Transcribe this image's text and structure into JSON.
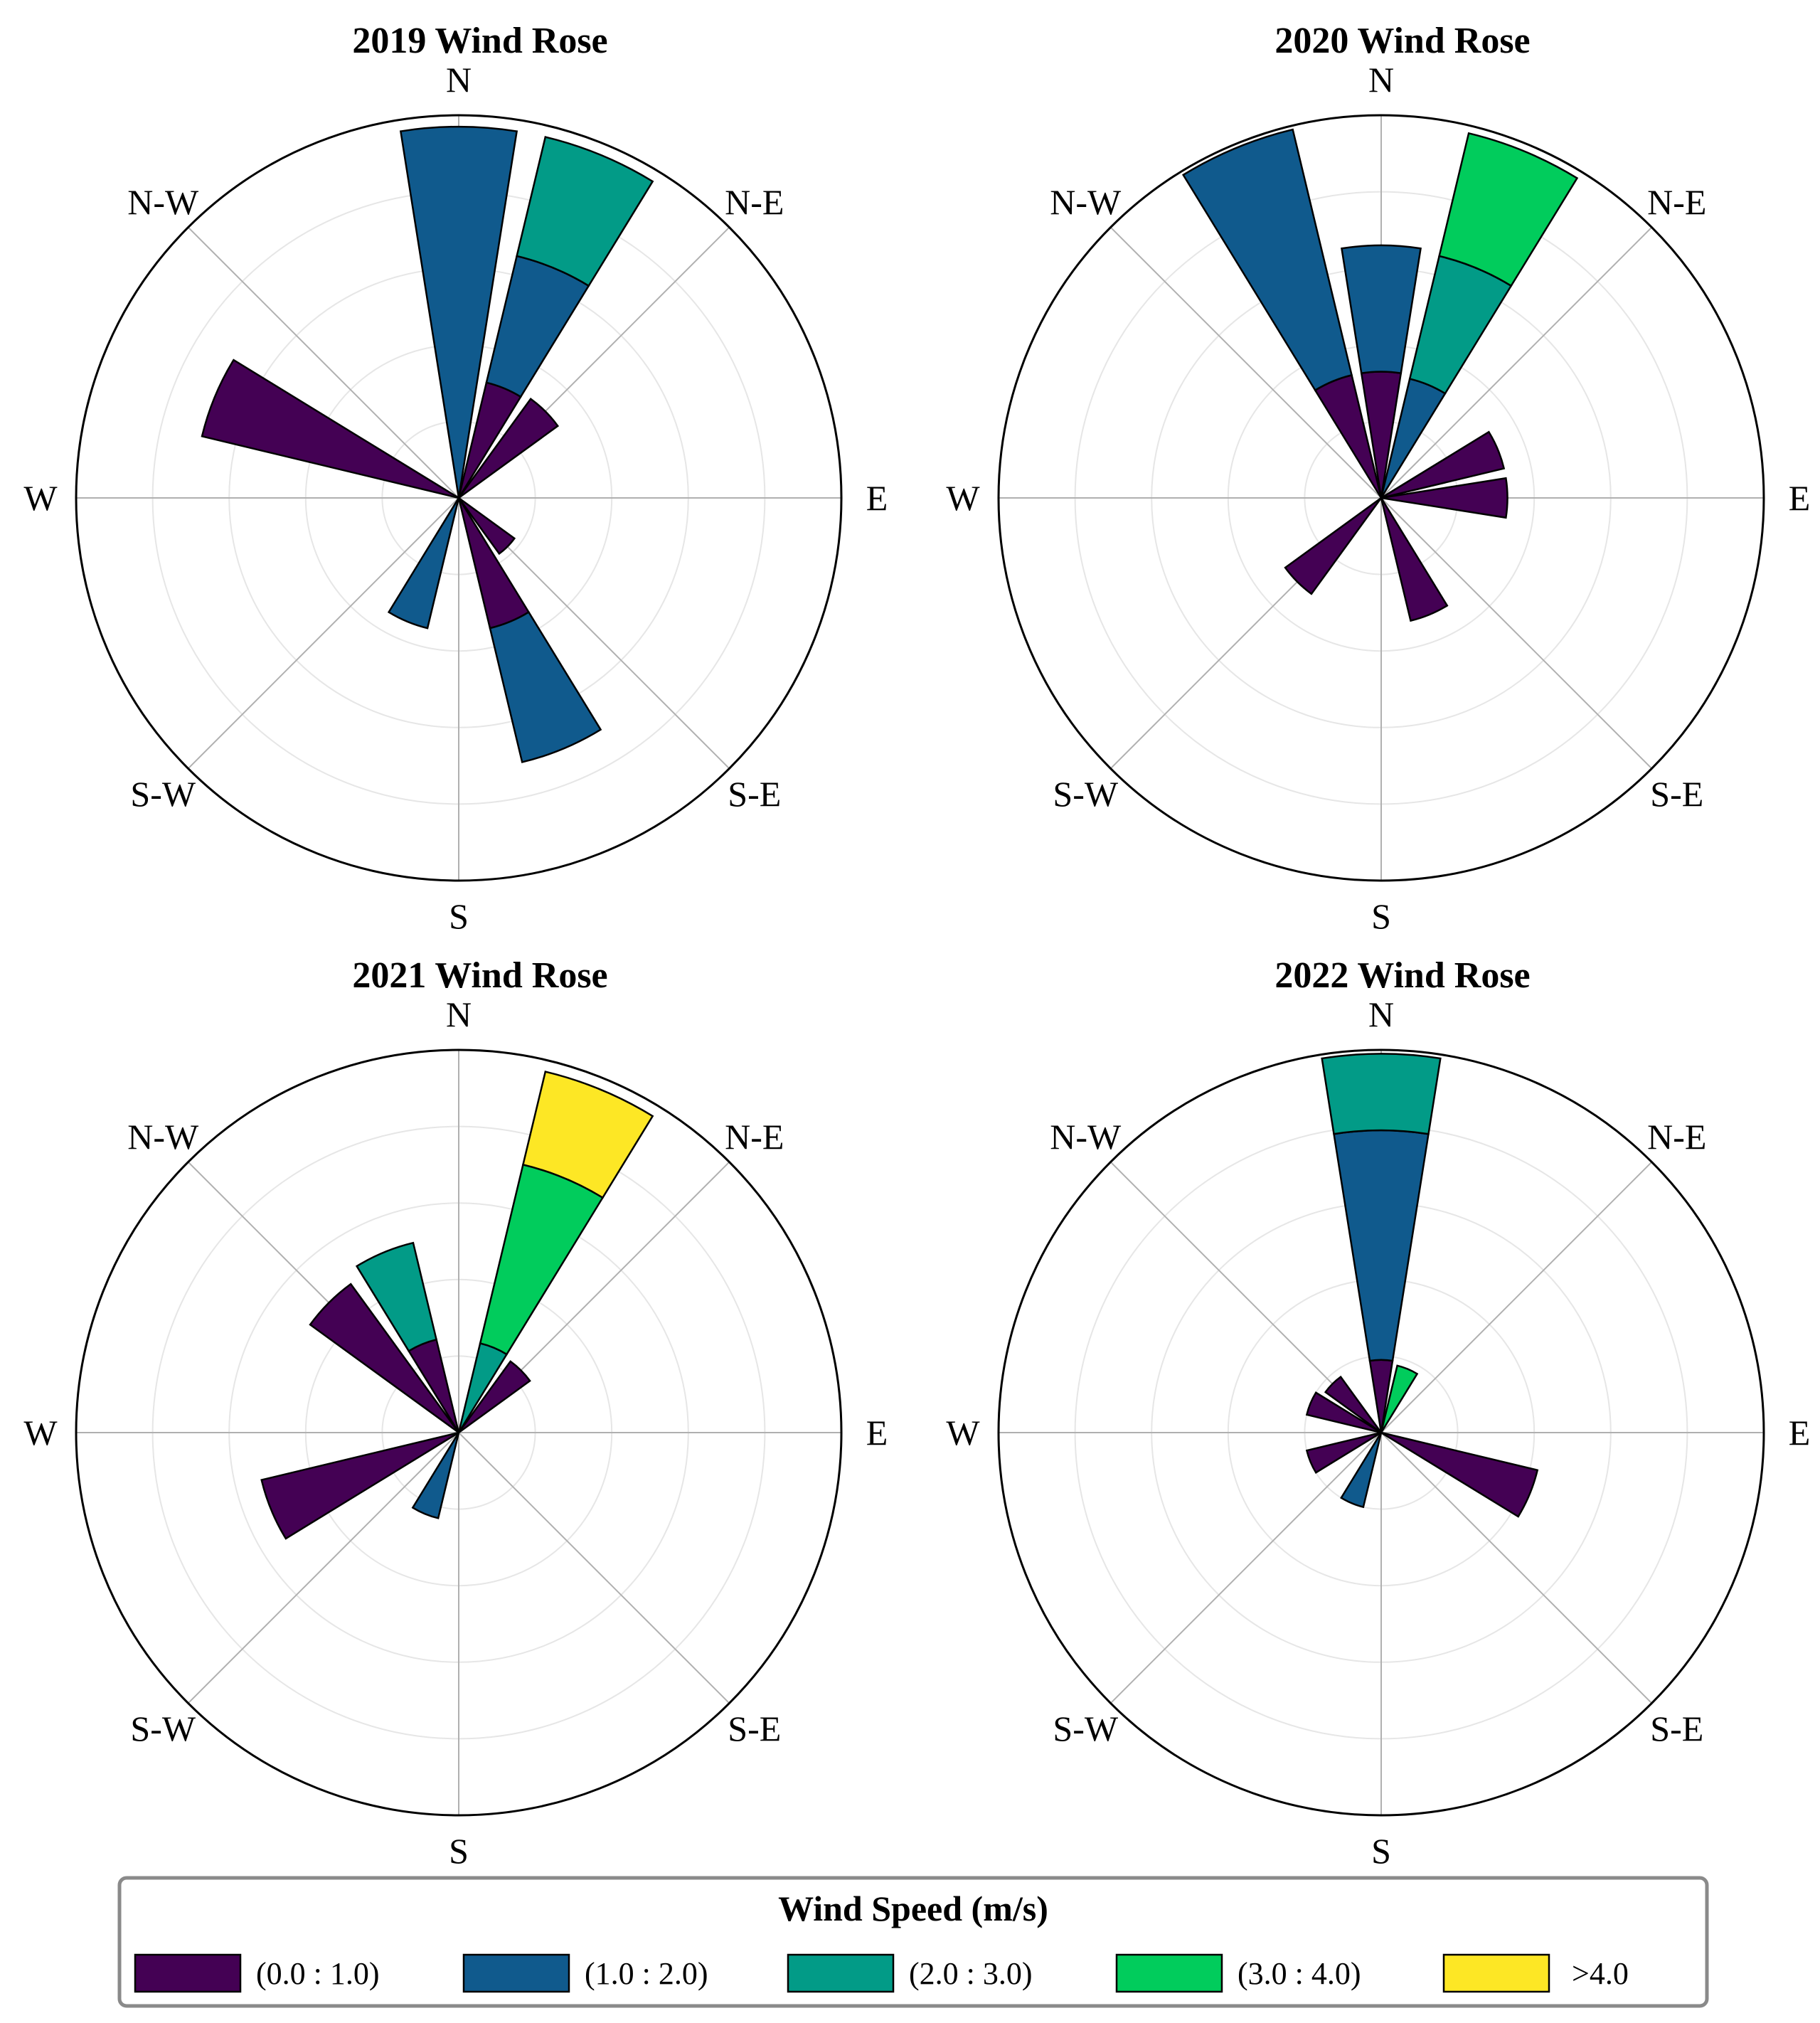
{
  "legend": {
    "title": "Wind Speed (m/s)",
    "bins": [
      {
        "label": "(0.0 : 1.0)",
        "color": "#440154"
      },
      {
        "label": "(1.0 : 2.0)",
        "color": "#105a8d"
      },
      {
        "label": "(2.0 : 3.0)",
        "color": "#029b87"
      },
      {
        "label": "(3.0 : 4.0)",
        "color": "#01cc5c"
      },
      {
        "label": ">4.0",
        "color": "#fde725"
      }
    ]
  },
  "chart_data": [
    {
      "type": "windrose",
      "title": "2019 Wind Rose",
      "direction_labels": [
        "N",
        "N-E",
        "E",
        "S-E",
        "S",
        "S-W",
        "W",
        "N-W"
      ],
      "rmax": 5,
      "rings": [
        1,
        2,
        3,
        4,
        5
      ],
      "sectors": [
        {
          "direction_deg": 0,
          "segments": [
            [
              0,
              4.85,
              1
            ]
          ]
        },
        {
          "direction_deg": 22.5,
          "segments": [
            [
              0,
              1.55,
              0
            ],
            [
              1.55,
              3.25,
              1
            ],
            [
              3.25,
              4.85,
              2
            ]
          ]
        },
        {
          "direction_deg": 45,
          "segments": [
            [
              0,
              1.6,
              0
            ]
          ]
        },
        {
          "direction_deg": 135,
          "segments": [
            [
              0,
              0.9,
              0
            ]
          ]
        },
        {
          "direction_deg": 157.5,
          "segments": [
            [
              0,
              1.75,
              0
            ],
            [
              1.75,
              3.55,
              1
            ]
          ]
        },
        {
          "direction_deg": 202.5,
          "segments": [
            [
              0,
              1.75,
              1
            ]
          ]
        },
        {
          "direction_deg": 292.5,
          "segments": [
            [
              0,
              3.45,
              0
            ]
          ]
        }
      ]
    },
    {
      "type": "windrose",
      "title": "2020 Wind Rose",
      "direction_labels": [
        "N",
        "N-E",
        "E",
        "S-E",
        "S",
        "S-W",
        "W",
        "N-W"
      ],
      "rmax": 5,
      "rings": [
        1,
        2,
        3,
        4,
        5
      ],
      "sectors": [
        {
          "direction_deg": 0,
          "segments": [
            [
              0,
              1.65,
              0
            ],
            [
              1.65,
              3.3,
              1
            ]
          ]
        },
        {
          "direction_deg": 22.5,
          "segments": [
            [
              0,
              1.6,
              1
            ],
            [
              1.6,
              3.25,
              2
            ],
            [
              3.25,
              4.9,
              3
            ]
          ]
        },
        {
          "direction_deg": 67.5,
          "segments": [
            [
              0,
              1.65,
              0
            ]
          ]
        },
        {
          "direction_deg": 90,
          "segments": [
            [
              0,
              1.65,
              0
            ]
          ]
        },
        {
          "direction_deg": 157.5,
          "segments": [
            [
              0,
              1.65,
              0
            ]
          ]
        },
        {
          "direction_deg": 225,
          "segments": [
            [
              0,
              1.55,
              0
            ]
          ]
        },
        {
          "direction_deg": 337.5,
          "segments": [
            [
              0,
              1.65,
              0
            ],
            [
              1.65,
              4.95,
              1
            ]
          ]
        }
      ]
    },
    {
      "type": "windrose",
      "title": "2021 Wind Rose",
      "direction_labels": [
        "N",
        "N-E",
        "E",
        "S-E",
        "S",
        "S-W",
        "W",
        "N-W"
      ],
      "rmax": 5,
      "rings": [
        1,
        2,
        3,
        4,
        5
      ],
      "sectors": [
        {
          "direction_deg": 22.5,
          "segments": [
            [
              0,
              1.2,
              2
            ],
            [
              1.2,
              3.6,
              3
            ],
            [
              3.6,
              4.85,
              4
            ]
          ]
        },
        {
          "direction_deg": 45,
          "segments": [
            [
              0,
              1.15,
              0
            ]
          ]
        },
        {
          "direction_deg": 247.5,
          "segments": [
            [
              0,
              2.65,
              0
            ]
          ]
        },
        {
          "direction_deg": 202.5,
          "segments": [
            [
              0,
              1.15,
              1
            ]
          ]
        },
        {
          "direction_deg": 315,
          "segments": [
            [
              0,
              2.4,
              0
            ]
          ]
        },
        {
          "direction_deg": 337.5,
          "segments": [
            [
              0,
              1.25,
              0
            ],
            [
              1.25,
              2.55,
              2
            ]
          ]
        }
      ]
    },
    {
      "type": "windrose",
      "title": "2022 Wind Rose",
      "direction_labels": [
        "N",
        "N-E",
        "E",
        "S-E",
        "S",
        "S-W",
        "W",
        "N-W"
      ],
      "rmax": 5,
      "rings": [
        1,
        2,
        3,
        4,
        5
      ],
      "sectors": [
        {
          "direction_deg": 0,
          "segments": [
            [
              0,
              0.95,
              0
            ],
            [
              0.95,
              3.95,
              1
            ],
            [
              3.95,
              4.95,
              2
            ]
          ]
        },
        {
          "direction_deg": 22.5,
          "segments": [
            [
              0,
              0.9,
              3
            ]
          ]
        },
        {
          "direction_deg": 112.5,
          "segments": [
            [
              0,
              2.1,
              0
            ]
          ]
        },
        {
          "direction_deg": 202.5,
          "segments": [
            [
              0,
              1.0,
              1
            ]
          ]
        },
        {
          "direction_deg": 247.5,
          "segments": [
            [
              0,
              1.0,
              0
            ]
          ]
        },
        {
          "direction_deg": 292.5,
          "segments": [
            [
              0,
              1.0,
              0
            ]
          ]
        },
        {
          "direction_deg": 315,
          "segments": [
            [
              0,
              0.9,
              0
            ]
          ]
        }
      ]
    }
  ]
}
